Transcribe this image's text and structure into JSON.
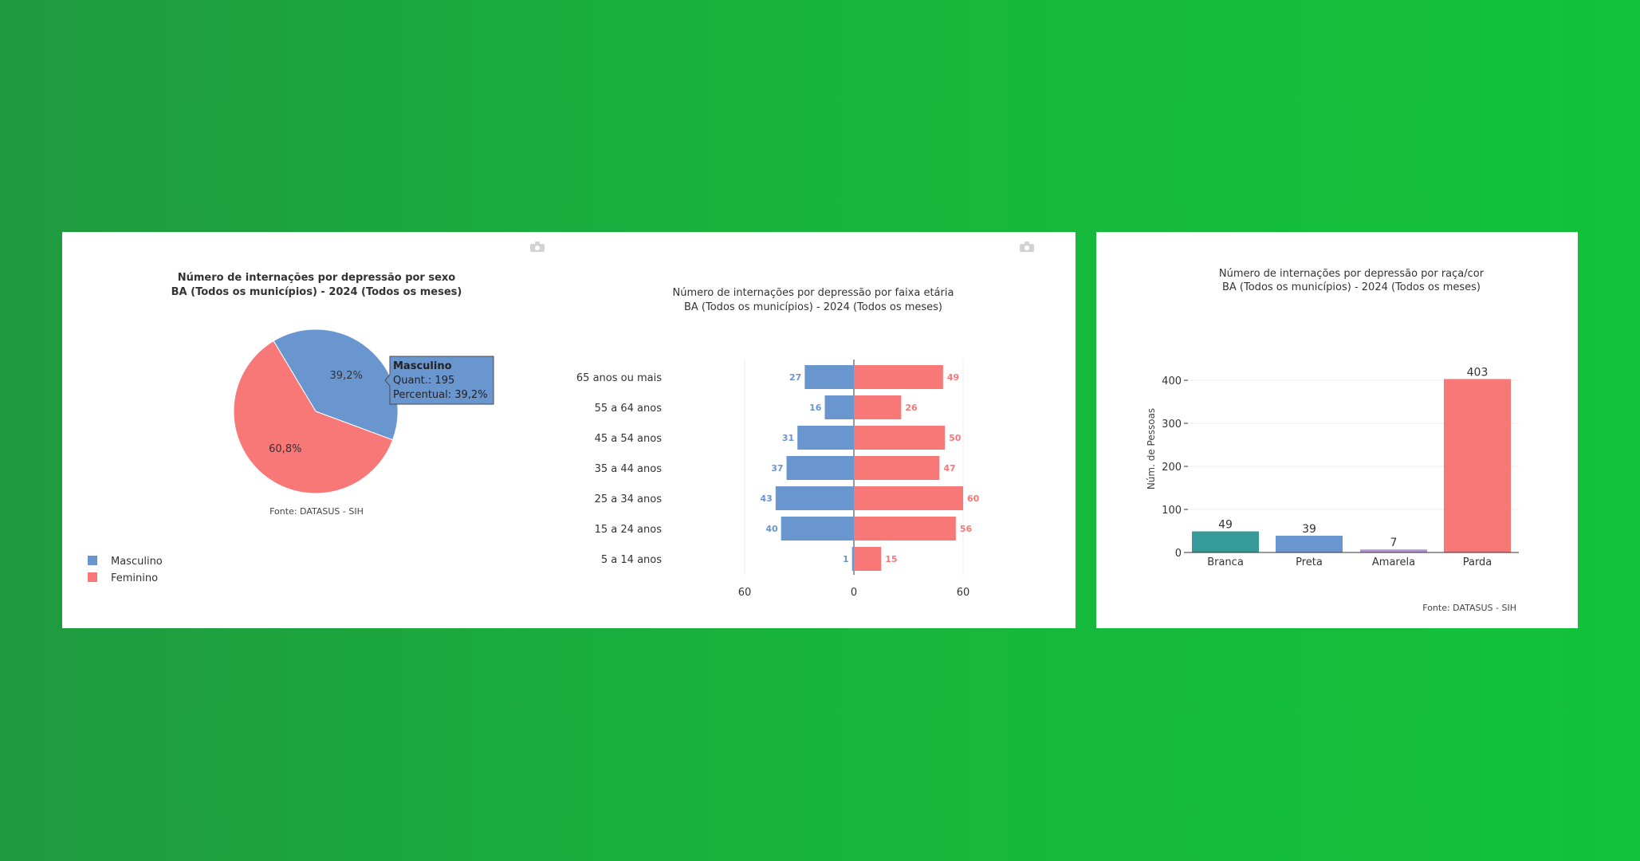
{
  "chart_data": [
    {
      "type": "pie",
      "title": "Número de internações por depressão por sexo",
      "subtitle": "BA (Todos os municípios) - 2024 (Todos os meses)",
      "slices": [
        {
          "label": "Masculino",
          "value": 195,
          "percent_label": "39,2%",
          "color": "#6a96d0"
        },
        {
          "label": "Feminino",
          "value": 302,
          "percent_label": "60,8%",
          "color": "#f87878"
        }
      ],
      "tooltip": {
        "title": "Masculino",
        "line1": "Quant.: 195",
        "line2": "Percentual: 39,2%"
      },
      "source": "Fonte: DATASUS - SIH",
      "legend": {
        "position": "bottom-left",
        "items": [
          "Masculino",
          "Feminino"
        ]
      }
    },
    {
      "type": "bar",
      "orientation": "horizontal-pyramid",
      "title": "Número de internações por depressão por faixa etária",
      "subtitle": "BA (Todos os municípios) - 2024 (Todos os meses)",
      "categories": [
        "65 anos ou mais",
        "55 a 64 anos",
        "45 a 54 anos",
        "35 a 44 anos",
        "25 a 34 anos",
        "15 a 24 anos",
        "5 a 14 anos"
      ],
      "series": [
        {
          "values": [
            27,
            16,
            31,
            37,
            43,
            40,
            1
          ],
          "color": "#6a96d0"
        },
        {
          "values": [
            49,
            26,
            50,
            47,
            60,
            56,
            15
          ],
          "color": "#f87878"
        }
      ],
      "xlim": [
        -60,
        60
      ],
      "x_ticks": [
        "60",
        "0",
        "60"
      ]
    },
    {
      "type": "bar",
      "title": "Número de internações por depressão por raça/cor",
      "subtitle": "BA (Todos os municípios) - 2024 (Todos os meses)",
      "categories": [
        "Branca",
        "Preta",
        "Amarela",
        "Parda"
      ],
      "values": [
        49,
        39,
        7,
        403
      ],
      "colors": [
        "#36999a",
        "#6a96d0",
        "#b395d6",
        "#f87878"
      ],
      "ylabel": "Núm. de Pessoas",
      "ylim": [
        0,
        410
      ],
      "y_ticks": [
        0,
        100,
        200,
        300,
        400
      ],
      "source": "Fonte: DATASUS - SIH"
    }
  ]
}
